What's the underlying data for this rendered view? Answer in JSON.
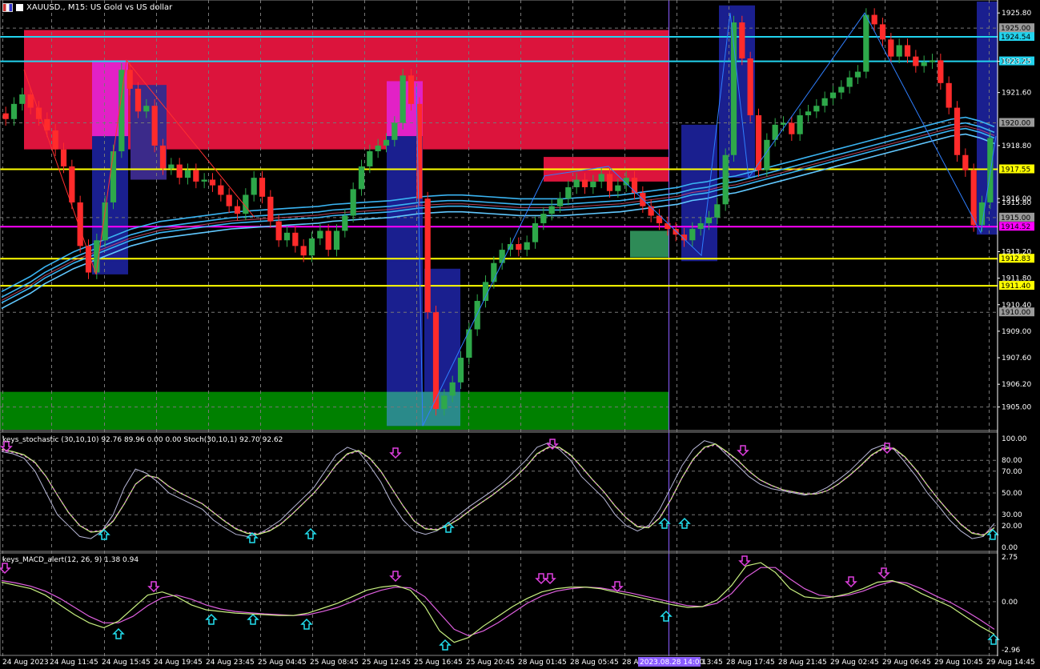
{
  "window": {
    "title": "XAUUSD., M15:  US Gold vs US dollar"
  },
  "indicators": {
    "stochastic_label": "keys_stochastic (30,10,10) 92.76 89.96 0.00 0.00 Stoch(30,10,1) 92.70 92.62",
    "macd_label": "keys_MACD_alert(12, 26, 9) 1.38 0.94"
  },
  "icons": [
    "symbol-flag-icon",
    "timeframe-icon",
    "arrow-up-icon",
    "arrow-down-icon"
  ],
  "colors": {
    "bull": "#2ea84a",
    "bear": "#ff2b2b",
    "zone_red": "#dc143c",
    "zone_green": "#008000",
    "zone_blue": "#1a1f8f",
    "zone_magenta": "#e221c6",
    "level_cyan": "#22d3ee",
    "level_yellow": "#ffff00",
    "level_magenta": "#ff00ff",
    "ema": "#3ab4f2",
    "ema_red": "#e0506e",
    "signal_cyan": "#22e0f0",
    "signal_magenta": "#e040e0"
  },
  "chart_data": {
    "type": "candlestick",
    "symbol": "XAUUSD.",
    "timeframe": "M15",
    "ylim": [
      1903.8,
      1926.4
    ],
    "x_labels": [
      "24 Aug 2023",
      "24 Aug 11:45",
      "24 Aug 15:45",
      "24 Aug 19:45",
      "24 Aug 23:45",
      "25 Aug 04:45",
      "25 Aug 08:45",
      "25 Aug 12:45",
      "25 Aug 16:45",
      "25 Aug 20:45",
      "28 Aug 01:45",
      "28 Aug 05:45",
      "28 Aug 09:45",
      "28 Aug 13:45",
      "28 Aug 17:45",
      "28 Aug 21:45",
      "29 Aug 02:45",
      "29 Aug 06:45",
      "29 Aug 10:45",
      "29 Aug 14:45"
    ],
    "cursor_time_label": "2023.08.28 14:00",
    "y_ticks": [
      "1925.80",
      "1923.25",
      "1921.60",
      "1918.80",
      "1916.00",
      "1915.80",
      "1913.20",
      "1911.80",
      "1910.40",
      "1909.00",
      "1907.60",
      "1906.20",
      "1905.00"
    ],
    "levels": [
      {
        "price": 1924.54,
        "label": "1924.54",
        "color": "cyan"
      },
      {
        "price": 1923.25,
        "label": "1923.25",
        "color": "cyan"
      },
      {
        "price": 1917.55,
        "label": "1917.55",
        "color": "yellow"
      },
      {
        "price": 1914.52,
        "label": "1914.52",
        "color": "magenta"
      },
      {
        "price": 1912.83,
        "label": "1912.83",
        "color": "yellow"
      },
      {
        "price": 1911.4,
        "label": "1911.40",
        "color": "yellow"
      }
    ],
    "grey_marks": [
      {
        "price": 1925.0,
        "label": "1925.00"
      },
      {
        "price": 1920.0,
        "label": "1920.00"
      },
      {
        "price": 1915.0,
        "label": "1915.00"
      },
      {
        "price": 1910.0,
        "label": "1910.00"
      }
    ],
    "closes": [
      1920.2,
      1921.0,
      1921.5,
      1920.8,
      1920.2,
      1919.6,
      1918.6,
      1917.7,
      1915.8,
      1913.5,
      1912.1,
      1913.8,
      1915.8,
      1918.5,
      1922.8,
      1921.8,
      1920.6,
      1920.9,
      1918.8,
      1917.6,
      1917.8,
      1917.1,
      1917.5,
      1916.9,
      1917.0,
      1916.7,
      1916.2,
      1915.6,
      1915.2,
      1916.2,
      1917.1,
      1916.1,
      1914.8,
      1913.8,
      1914.2,
      1913.5,
      1913.0,
      1913.9,
      1914.3,
      1913.3,
      1914.3,
      1915.1,
      1916.5,
      1917.7,
      1918.5,
      1918.8,
      1919.1,
      1920.0,
      1922.5,
      1921.0,
      1916.0,
      1910.0,
      1904.9,
      1905.6,
      1906.3,
      1907.6,
      1909.1,
      1910.6,
      1911.6,
      1912.6,
      1913.3,
      1913.6,
      1913.3,
      1913.7,
      1914.7,
      1915.2,
      1915.6,
      1916.0,
      1916.6,
      1917.0,
      1916.6,
      1916.9,
      1917.3,
      1916.4,
      1916.7,
      1917.1,
      1916.3,
      1915.6,
      1915.1,
      1914.7,
      1914.4,
      1914.1,
      1913.8,
      1914.4,
      1914.7,
      1915.0,
      1915.7,
      1918.3,
      1925.3,
      1923.4,
      1920.4,
      1917.5,
      1919.1,
      1919.9,
      1920.0,
      1919.4,
      1920.4,
      1920.6,
      1920.9,
      1921.3,
      1921.6,
      1921.9,
      1922.4,
      1922.7,
      1925.7,
      1925.2,
      1924.4,
      1923.5,
      1924.1,
      1923.5,
      1923.0,
      1923.2,
      1923.3,
      1922.1,
      1920.8,
      1918.3,
      1917.5,
      1914.6,
      1915.8,
      1919.2
    ],
    "ema_fast": [
      1910.5,
      1910.9,
      1911.3,
      1911.8,
      1912.2,
      1912.6,
      1912.9,
      1913.2,
      1913.5,
      1913.8,
      1914.0,
      1914.2,
      1914.3,
      1914.4,
      1914.5,
      1914.6,
      1914.7,
      1914.75,
      1914.8,
      1914.85,
      1914.9,
      1914.95,
      1915.0,
      1915.1,
      1915.15,
      1915.2,
      1915.25,
      1915.3,
      1915.4,
      1915.5,
      1915.55,
      1915.6,
      1915.6,
      1915.55,
      1915.5,
      1915.45,
      1915.4,
      1915.4,
      1915.4,
      1915.4,
      1915.45,
      1915.5,
      1915.55,
      1915.6,
      1915.7,
      1915.8,
      1915.9,
      1916.0,
      1916.2,
      1916.3,
      1916.5,
      1916.6,
      1916.8,
      1917.0,
      1917.2,
      1917.4,
      1917.6,
      1917.8,
      1918.0,
      1918.2,
      1918.4,
      1918.6,
      1918.8,
      1919.0,
      1919.2,
      1919.4,
      1919.6,
      1919.7,
      1919.5,
      1919.2
    ],
    "stochastic": {
      "ylim": [
        0,
        100
      ],
      "y_ticks": [
        "100.00",
        "80.00",
        "70.00",
        "50.00",
        "30.00",
        "20.00",
        "0.00"
      ],
      "k": [
        88,
        86,
        82,
        70,
        50,
        30,
        20,
        10,
        8,
        15,
        30,
        55,
        72,
        68,
        60,
        50,
        45,
        40,
        35,
        25,
        18,
        12,
        10,
        12,
        18,
        25,
        35,
        45,
        55,
        70,
        85,
        92,
        88,
        75,
        60,
        40,
        25,
        15,
        12,
        15,
        22,
        30,
        38,
        45,
        52,
        60,
        70,
        80,
        92,
        96,
        90,
        80,
        65,
        55,
        45,
        30,
        20,
        15,
        20,
        35,
        55,
        75,
        90,
        98,
        95,
        85,
        75,
        65,
        58,
        54,
        52,
        50,
        48,
        50,
        55,
        62,
        70,
        80,
        90,
        94,
        90,
        78,
        65,
        50,
        38,
        25,
        15,
        8,
        10,
        22
      ],
      "d": [
        90,
        88,
        85,
        78,
        65,
        48,
        32,
        20,
        14,
        15,
        24,
        40,
        58,
        66,
        64,
        56,
        50,
        45,
        40,
        32,
        24,
        17,
        13,
        12,
        15,
        21,
        30,
        40,
        50,
        62,
        76,
        86,
        89,
        82,
        70,
        54,
        38,
        24,
        17,
        16,
        20,
        26,
        34,
        41,
        48,
        56,
        64,
        74,
        86,
        92,
        92,
        85,
        74,
        62,
        51,
        38,
        27,
        19,
        18,
        27,
        44,
        64,
        81,
        92,
        95,
        88,
        80,
        70,
        62,
        57,
        53,
        51,
        49,
        49,
        52,
        58,
        66,
        75,
        85,
        91,
        91,
        83,
        71,
        57,
        44,
        32,
        21,
        13,
        11,
        18
      ]
    },
    "macd": {
      "ylim": [
        -2.96,
        2.75
      ],
      "y_ticks": [
        "2.75",
        "0.00",
        "-2.96"
      ],
      "macd_line": [
        1.2,
        1.0,
        0.8,
        0.4,
        -0.2,
        -0.8,
        -1.3,
        -1.6,
        -1.2,
        -0.4,
        0.4,
        0.6,
        0.3,
        -0.2,
        -0.5,
        -0.6,
        -0.7,
        -0.75,
        -0.8,
        -0.85,
        -0.85,
        -0.7,
        -0.4,
        -0.1,
        0.3,
        0.7,
        0.9,
        1.0,
        0.7,
        -0.3,
        -1.8,
        -2.5,
        -2.2,
        -1.5,
        -0.9,
        -0.3,
        0.2,
        0.6,
        0.8,
        0.9,
        0.9,
        0.8,
        0.6,
        0.4,
        0.2,
        0.0,
        -0.2,
        -0.35,
        -0.3,
        0.1,
        1.0,
        2.2,
        2.4,
        1.8,
        0.8,
        0.3,
        0.2,
        0.3,
        0.5,
        0.8,
        1.2,
        1.3,
        1.0,
        0.5,
        0.1,
        -0.3,
        -0.9,
        -1.5,
        -2.0
      ],
      "signal_line": [
        1.3,
        1.15,
        0.95,
        0.65,
        0.2,
        -0.35,
        -0.9,
        -1.3,
        -1.3,
        -0.9,
        -0.25,
        0.25,
        0.4,
        0.15,
        -0.2,
        -0.45,
        -0.6,
        -0.68,
        -0.75,
        -0.8,
        -0.85,
        -0.8,
        -0.6,
        -0.35,
        0.0,
        0.4,
        0.7,
        0.9,
        0.85,
        0.3,
        -0.7,
        -1.7,
        -2.1,
        -1.8,
        -1.3,
        -0.7,
        -0.1,
        0.35,
        0.65,
        0.8,
        0.9,
        0.85,
        0.7,
        0.55,
        0.35,
        0.15,
        -0.05,
        -0.25,
        -0.3,
        -0.1,
        0.5,
        1.5,
        2.1,
        2.1,
        1.4,
        0.8,
        0.4,
        0.3,
        0.4,
        0.65,
        1.0,
        1.25,
        1.15,
        0.8,
        0.35,
        -0.05,
        -0.55,
        -1.1,
        -1.7
      ]
    }
  }
}
